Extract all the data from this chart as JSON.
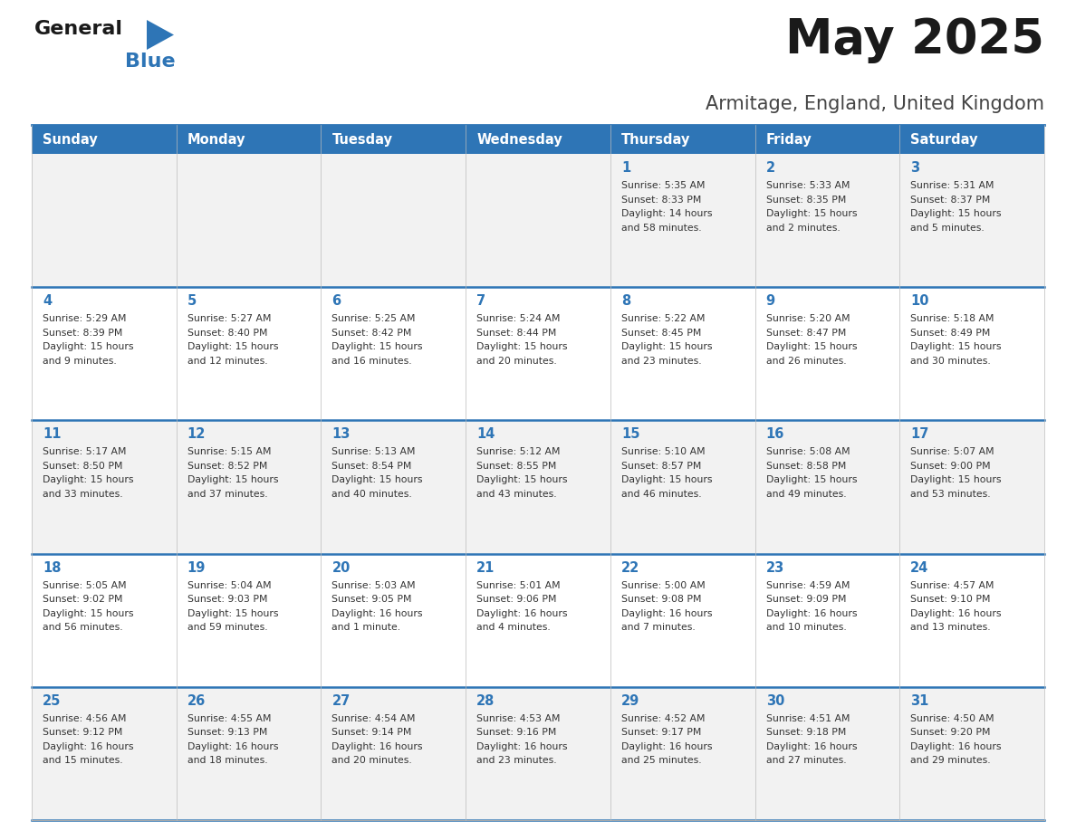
{
  "title": "May 2025",
  "subtitle": "Armitage, England, United Kingdom",
  "days_of_week": [
    "Sunday",
    "Monday",
    "Tuesday",
    "Wednesday",
    "Thursday",
    "Friday",
    "Saturday"
  ],
  "header_bg": "#2E75B6",
  "header_text": "#FFFFFF",
  "cell_bg_odd": "#F2F2F2",
  "cell_bg_even": "#FFFFFF",
  "day_number_color": "#2E75B6",
  "text_color": "#333333",
  "border_color": "#2E75B6",
  "calendar_data": [
    [
      null,
      null,
      null,
      null,
      {
        "day": "1",
        "sunrise": "5:35 AM",
        "sunset": "8:33 PM",
        "daylight_h": "14 hours",
        "daylight_m": "and 58 minutes."
      },
      {
        "day": "2",
        "sunrise": "5:33 AM",
        "sunset": "8:35 PM",
        "daylight_h": "15 hours",
        "daylight_m": "and 2 minutes."
      },
      {
        "day": "3",
        "sunrise": "5:31 AM",
        "sunset": "8:37 PM",
        "daylight_h": "15 hours",
        "daylight_m": "and 5 minutes."
      }
    ],
    [
      {
        "day": "4",
        "sunrise": "5:29 AM",
        "sunset": "8:39 PM",
        "daylight_h": "15 hours",
        "daylight_m": "and 9 minutes."
      },
      {
        "day": "5",
        "sunrise": "5:27 AM",
        "sunset": "8:40 PM",
        "daylight_h": "15 hours",
        "daylight_m": "and 12 minutes."
      },
      {
        "day": "6",
        "sunrise": "5:25 AM",
        "sunset": "8:42 PM",
        "daylight_h": "15 hours",
        "daylight_m": "and 16 minutes."
      },
      {
        "day": "7",
        "sunrise": "5:24 AM",
        "sunset": "8:44 PM",
        "daylight_h": "15 hours",
        "daylight_m": "and 20 minutes."
      },
      {
        "day": "8",
        "sunrise": "5:22 AM",
        "sunset": "8:45 PM",
        "daylight_h": "15 hours",
        "daylight_m": "and 23 minutes."
      },
      {
        "day": "9",
        "sunrise": "5:20 AM",
        "sunset": "8:47 PM",
        "daylight_h": "15 hours",
        "daylight_m": "and 26 minutes."
      },
      {
        "day": "10",
        "sunrise": "5:18 AM",
        "sunset": "8:49 PM",
        "daylight_h": "15 hours",
        "daylight_m": "and 30 minutes."
      }
    ],
    [
      {
        "day": "11",
        "sunrise": "5:17 AM",
        "sunset": "8:50 PM",
        "daylight_h": "15 hours",
        "daylight_m": "and 33 minutes."
      },
      {
        "day": "12",
        "sunrise": "5:15 AM",
        "sunset": "8:52 PM",
        "daylight_h": "15 hours",
        "daylight_m": "and 37 minutes."
      },
      {
        "day": "13",
        "sunrise": "5:13 AM",
        "sunset": "8:54 PM",
        "daylight_h": "15 hours",
        "daylight_m": "and 40 minutes."
      },
      {
        "day": "14",
        "sunrise": "5:12 AM",
        "sunset": "8:55 PM",
        "daylight_h": "15 hours",
        "daylight_m": "and 43 minutes."
      },
      {
        "day": "15",
        "sunrise": "5:10 AM",
        "sunset": "8:57 PM",
        "daylight_h": "15 hours",
        "daylight_m": "and 46 minutes."
      },
      {
        "day": "16",
        "sunrise": "5:08 AM",
        "sunset": "8:58 PM",
        "daylight_h": "15 hours",
        "daylight_m": "and 49 minutes."
      },
      {
        "day": "17",
        "sunrise": "5:07 AM",
        "sunset": "9:00 PM",
        "daylight_h": "15 hours",
        "daylight_m": "and 53 minutes."
      }
    ],
    [
      {
        "day": "18",
        "sunrise": "5:05 AM",
        "sunset": "9:02 PM",
        "daylight_h": "15 hours",
        "daylight_m": "and 56 minutes."
      },
      {
        "day": "19",
        "sunrise": "5:04 AM",
        "sunset": "9:03 PM",
        "daylight_h": "15 hours",
        "daylight_m": "and 59 minutes."
      },
      {
        "day": "20",
        "sunrise": "5:03 AM",
        "sunset": "9:05 PM",
        "daylight_h": "16 hours",
        "daylight_m": "and 1 minute."
      },
      {
        "day": "21",
        "sunrise": "5:01 AM",
        "sunset": "9:06 PM",
        "daylight_h": "16 hours",
        "daylight_m": "and 4 minutes."
      },
      {
        "day": "22",
        "sunrise": "5:00 AM",
        "sunset": "9:08 PM",
        "daylight_h": "16 hours",
        "daylight_m": "and 7 minutes."
      },
      {
        "day": "23",
        "sunrise": "4:59 AM",
        "sunset": "9:09 PM",
        "daylight_h": "16 hours",
        "daylight_m": "and 10 minutes."
      },
      {
        "day": "24",
        "sunrise": "4:57 AM",
        "sunset": "9:10 PM",
        "daylight_h": "16 hours",
        "daylight_m": "and 13 minutes."
      }
    ],
    [
      {
        "day": "25",
        "sunrise": "4:56 AM",
        "sunset": "9:12 PM",
        "daylight_h": "16 hours",
        "daylight_m": "and 15 minutes."
      },
      {
        "day": "26",
        "sunrise": "4:55 AM",
        "sunset": "9:13 PM",
        "daylight_h": "16 hours",
        "daylight_m": "and 18 minutes."
      },
      {
        "day": "27",
        "sunrise": "4:54 AM",
        "sunset": "9:14 PM",
        "daylight_h": "16 hours",
        "daylight_m": "and 20 minutes."
      },
      {
        "day": "28",
        "sunrise": "4:53 AM",
        "sunset": "9:16 PM",
        "daylight_h": "16 hours",
        "daylight_m": "and 23 minutes."
      },
      {
        "day": "29",
        "sunrise": "4:52 AM",
        "sunset": "9:17 PM",
        "daylight_h": "16 hours",
        "daylight_m": "and 25 minutes."
      },
      {
        "day": "30",
        "sunrise": "4:51 AM",
        "sunset": "9:18 PM",
        "daylight_h": "16 hours",
        "daylight_m": "and 27 minutes."
      },
      {
        "day": "31",
        "sunrise": "4:50 AM",
        "sunset": "9:20 PM",
        "daylight_h": "16 hours",
        "daylight_m": "and 29 minutes."
      }
    ]
  ],
  "fig_width": 11.88,
  "fig_height": 9.18,
  "dpi": 100
}
